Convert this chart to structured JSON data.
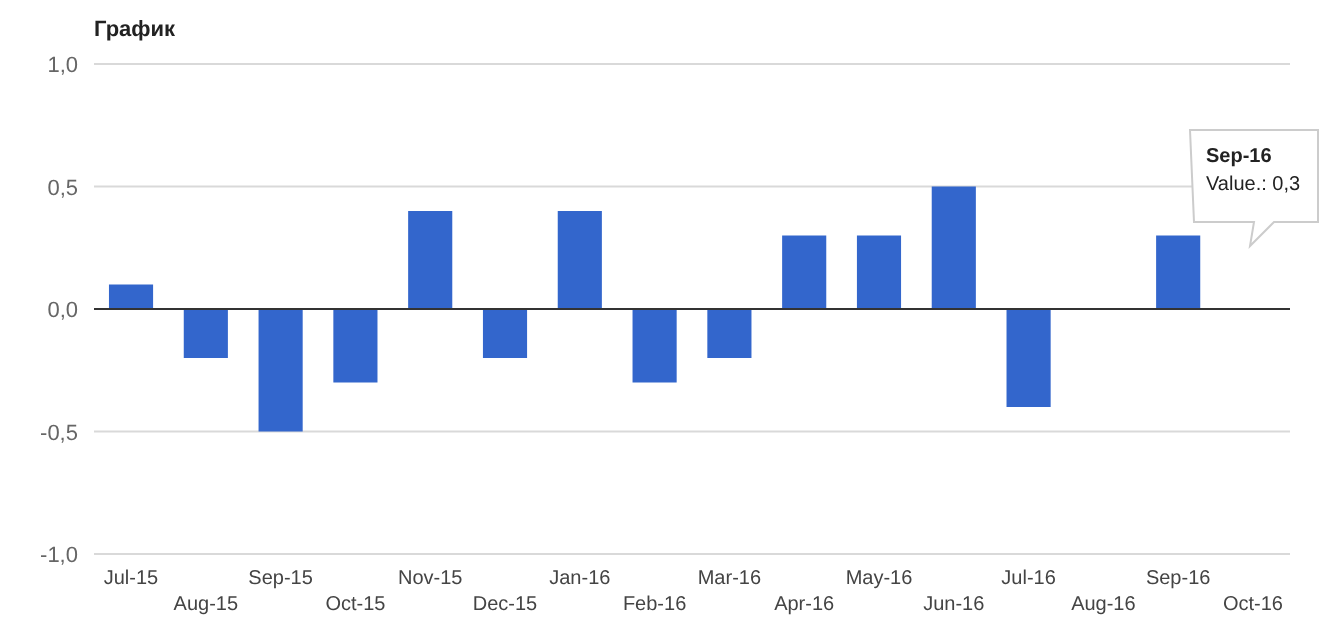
{
  "chart_data": {
    "type": "bar",
    "title": "График",
    "categories": [
      "Jul-15",
      "Aug-15",
      "Sep-15",
      "Oct-15",
      "Nov-15",
      "Dec-15",
      "Jan-16",
      "Feb-16",
      "Mar-16",
      "Apr-16",
      "May-16",
      "Jun-16",
      "Jul-16",
      "Aug-16",
      "Sep-16",
      "Oct-16"
    ],
    "values": [
      0.1,
      -0.2,
      -0.5,
      -0.3,
      0.4,
      -0.2,
      0.4,
      -0.3,
      -0.2,
      0.3,
      0.3,
      0.5,
      -0.4,
      null,
      0.3,
      null
    ],
    "color": "#3366cc",
    "ylim": [
      -1,
      1
    ],
    "yticks": [
      {
        "value": -1,
        "label": "-1,0"
      },
      {
        "value": -0.5,
        "label": "-0,5"
      },
      {
        "value": 0,
        "label": "0,0"
      },
      {
        "value": 0.5,
        "label": "0,5"
      },
      {
        "value": 1,
        "label": "1,0"
      }
    ],
    "grid": "y",
    "annotations": [
      "Sep-16",
      "Value.: 0,3"
    ]
  }
}
